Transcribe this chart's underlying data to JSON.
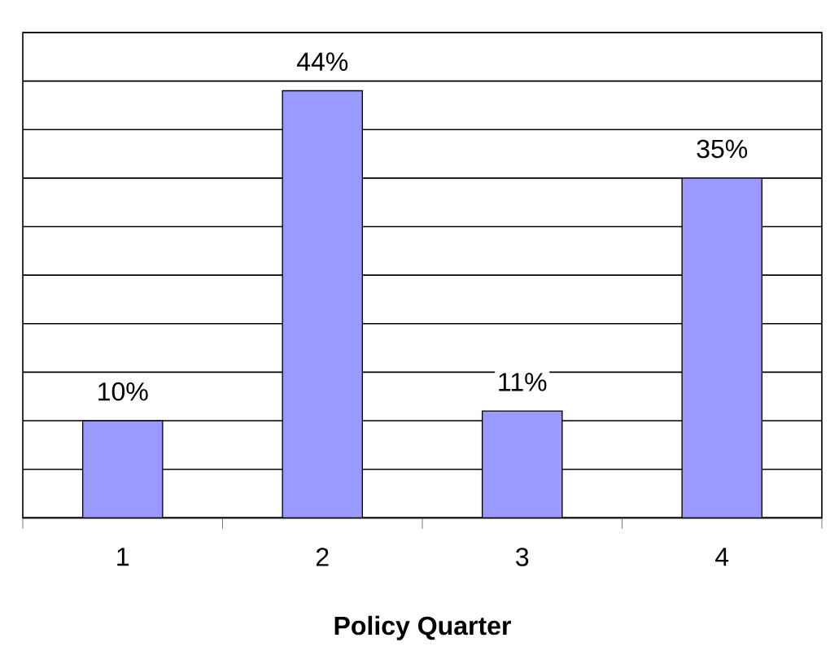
{
  "chart_data": {
    "type": "bar",
    "xlabel": "Policy Quarter",
    "categories": [
      "1",
      "2",
      "3",
      "4"
    ],
    "values": [
      10,
      44,
      11,
      35
    ],
    "value_labels": [
      "10%",
      "44%",
      "11%",
      "35%"
    ],
    "color": "#9999ff",
    "ylim": [
      0,
      50
    ],
    "yticks": [
      {
        "value": 0,
        "label": null
      },
      {
        "value": 5,
        "label": null
      },
      {
        "value": 10,
        "label": null
      },
      {
        "value": 15,
        "label": null
      },
      {
        "value": 20,
        "label": null
      },
      {
        "value": 25,
        "label": null
      },
      {
        "value": 30,
        "label": null
      },
      {
        "value": 35,
        "label": null
      },
      {
        "value": 40,
        "label": null
      },
      {
        "value": 45,
        "label": null
      },
      {
        "value": 50,
        "label": null
      }
    ],
    "grid": "y",
    "tick_labels": "x"
  }
}
